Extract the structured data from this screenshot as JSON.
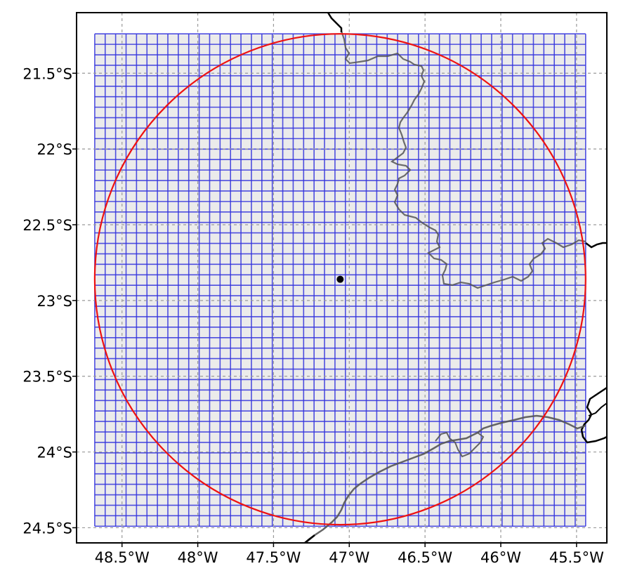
{
  "map": {
    "extent": {
      "lon_min": -48.8,
      "lon_max": -45.3,
      "lat_min": -24.6,
      "lat_max": -21.1
    },
    "x_ticks": [
      {
        "lon": -48.5,
        "label": "48.5°W"
      },
      {
        "lon": -48.0,
        "label": "48°W"
      },
      {
        "lon": -47.5,
        "label": "47.5°W"
      },
      {
        "lon": -47.0,
        "label": "47°W"
      },
      {
        "lon": -46.5,
        "label": "46.5°W"
      },
      {
        "lon": -46.0,
        "label": "46°W"
      },
      {
        "lon": -45.5,
        "label": "45.5°W"
      }
    ],
    "y_ticks": [
      {
        "lat": -21.5,
        "label": "21.5°S"
      },
      {
        "lat": -22.0,
        "label": "22°S"
      },
      {
        "lat": -22.5,
        "label": "22.5°S"
      },
      {
        "lat": -23.0,
        "label": "23°S"
      },
      {
        "lat": -23.5,
        "label": "23.5°S"
      },
      {
        "lat": -24.0,
        "label": "24°S"
      },
      {
        "lat": -24.5,
        "label": "24.5°S"
      }
    ],
    "gridlines": true,
    "grid_cells": {
      "lon_min": -48.68,
      "lon_max": -45.44,
      "lat_min": -24.49,
      "lat_max": -21.24,
      "n_cols": 47,
      "n_rows": 47,
      "color": "#3333dd",
      "fill": "#ebebeb"
    },
    "center_point": {
      "lon": -47.06,
      "lat": -22.86,
      "color": "#000000"
    },
    "radius_circle": {
      "lon": -47.06,
      "lat": -22.86,
      "radius_deg": 1.62,
      "color": "#ee1111"
    },
    "coastline_color": "#000000",
    "state_border_color": "#555555"
  }
}
